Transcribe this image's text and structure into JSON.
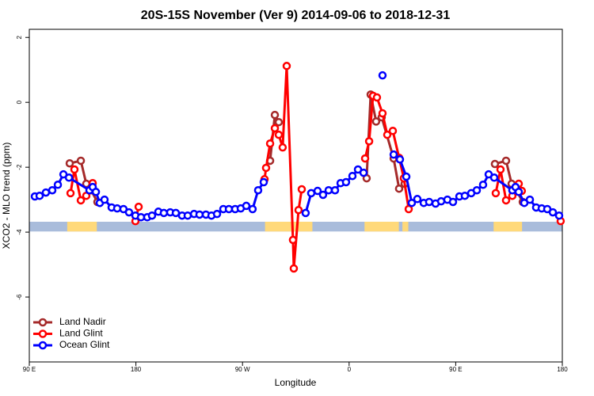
{
  "chart_data": {
    "type": "line",
    "title": "20S-15S November (Ver 9)   2014-09-06 to 2018-12-31",
    "xlabel": "Longitude",
    "ylabel": "XCO2 - MLO trend (ppm)",
    "xlim": [
      90,
      540
    ],
    "ylim": [
      -8,
      2.25
    ],
    "xticks": [
      {
        "value": 90,
        "label": "90 E"
      },
      {
        "value": 180,
        "label": "180"
      },
      {
        "value": 270,
        "label": "90 W"
      },
      {
        "value": 360,
        "label": "0"
      },
      {
        "value": 450,
        "label": "90 E"
      },
      {
        "value": 540,
        "label": "180"
      }
    ],
    "yticks": [
      2,
      0,
      -2,
      -4,
      -6
    ],
    "legend": "bottom-left",
    "mask_band": [
      -3.68,
      -3.98
    ],
    "ocean_color": "#a9bcdb",
    "land_color": "#ffd97a",
    "land_ranges": [
      [
        122,
        147
      ],
      [
        289,
        329
      ],
      [
        373,
        402
      ],
      [
        405,
        410
      ],
      [
        482,
        506
      ]
    ],
    "series": [
      {
        "name": "Land Nadir",
        "color": "#a52a2a",
        "x": [
          124.1,
          133.5,
          138.1,
          142.2,
          147.5,
          220,
          293.3,
          297.3,
          300.6,
          340,
          374.8,
          378.2,
          382.8,
          387.5,
          397.6,
          402.2,
          406.9,
          450,
          483.1,
          492.5,
          497.2,
          501.2,
          506.6
        ],
        "values": [
          -1.88,
          -1.8,
          -2.51,
          -2.71,
          -3.07,
          null,
          -1.8,
          -0.39,
          -0.61,
          null,
          -2.34,
          0.24,
          -0.59,
          -0.46,
          -1.73,
          -2.66,
          -2.51,
          null,
          -1.9,
          -1.8,
          -2.51,
          -2.71,
          -3.07
        ]
      },
      {
        "name": "Land Glint",
        "color": "#ff0000",
        "x": [
          124.8,
          128.1,
          133.5,
          138.1,
          143.5,
          160,
          179.6,
          182.3,
          230,
          288.6,
          289.9,
          293.3,
          297.3,
          300.6,
          303.9,
          307.3,
          312.6,
          313.3,
          317.3,
          320.0,
          350,
          373.5,
          376.9,
          380.2,
          383.5,
          388.2,
          392.2,
          396.9,
          402.2,
          406.2,
          410.3,
          450,
          483.8,
          487.8,
          492.5,
          497.8,
          503.2,
          505.8,
          520,
          538.6
        ],
        "values": [
          -2.8,
          -2.07,
          -3.02,
          -2.88,
          -2.49,
          null,
          -3.66,
          -3.22,
          null,
          -2.37,
          -2.02,
          -1.27,
          -0.8,
          -1.0,
          -1.39,
          1.12,
          -4.24,
          -5.12,
          -3.32,
          -2.68,
          null,
          -1.73,
          -1.2,
          0.2,
          0.15,
          -0.34,
          -1.0,
          -0.88,
          -1.71,
          -2.34,
          -3.29,
          null,
          -2.8,
          -2.07,
          -3.02,
          -2.88,
          -2.51,
          -2.73,
          null,
          -3.66
        ]
      },
      {
        "name": "Ocean Glint",
        "color": "#0000ff",
        "x": [
          94.7,
          98.7,
          104.0,
          109.4,
          114.1,
          118.8,
          123.5,
          140.8,
          143.5,
          146.2,
          149.5,
          153.5,
          159.5,
          164.2,
          169.5,
          174.2,
          179.6,
          184.3,
          189.6,
          193.6,
          199.0,
          203.6,
          209.0,
          213.7,
          219.0,
          223.7,
          229.1,
          233.7,
          239.1,
          243.8,
          248.5,
          253.8,
          258.5,
          263.8,
          268.5,
          273.2,
          278.5,
          283.2,
          287.9,
          305,
          323.3,
          328.0,
          333.4,
          338.0,
          342.7,
          348.1,
          352.8,
          357.4,
          362.8,
          367.5,
          372.2,
          380,
          388.2,
          393,
          397.6,
          402.9,
          408.3,
          412.9,
          417.6,
          423.0,
          427.6,
          433.0,
          437.7,
          443.0,
          447.7,
          453.1,
          457.7,
          463.1,
          467.8,
          473.1,
          477.8,
          482.5,
          497.8,
          500.5,
          503.2,
          507.9,
          512.6,
          517.9,
          522.6,
          527.3,
          532.0,
          537.3
        ],
        "values": [
          -2.9,
          -2.88,
          -2.78,
          -2.71,
          -2.54,
          -2.22,
          -2.32,
          -2.71,
          -2.61,
          -2.76,
          -3.1,
          -3.0,
          -3.24,
          -3.27,
          -3.29,
          -3.39,
          -3.49,
          -3.54,
          -3.54,
          -3.49,
          -3.37,
          -3.41,
          -3.39,
          -3.41,
          -3.49,
          -3.49,
          -3.44,
          -3.46,
          -3.46,
          -3.49,
          -3.44,
          -3.29,
          -3.29,
          -3.29,
          -3.27,
          -3.19,
          -3.29,
          -2.71,
          -2.46,
          null,
          -3.41,
          -2.8,
          -2.73,
          -2.85,
          -2.71,
          -2.71,
          -2.49,
          -2.46,
          -2.27,
          -2.07,
          -2.17,
          null,
          0.83,
          null,
          -1.61,
          -1.76,
          -2.29,
          -3.1,
          -2.98,
          -3.1,
          -3.07,
          -3.12,
          -3.05,
          -3.0,
          -3.07,
          -2.9,
          -2.88,
          -2.8,
          -2.71,
          -2.54,
          -2.22,
          -2.32,
          -2.71,
          -2.61,
          -2.76,
          -3.1,
          -3.0,
          -3.24,
          -3.27,
          -3.29,
          -3.39,
          -3.49
        ]
      }
    ]
  }
}
